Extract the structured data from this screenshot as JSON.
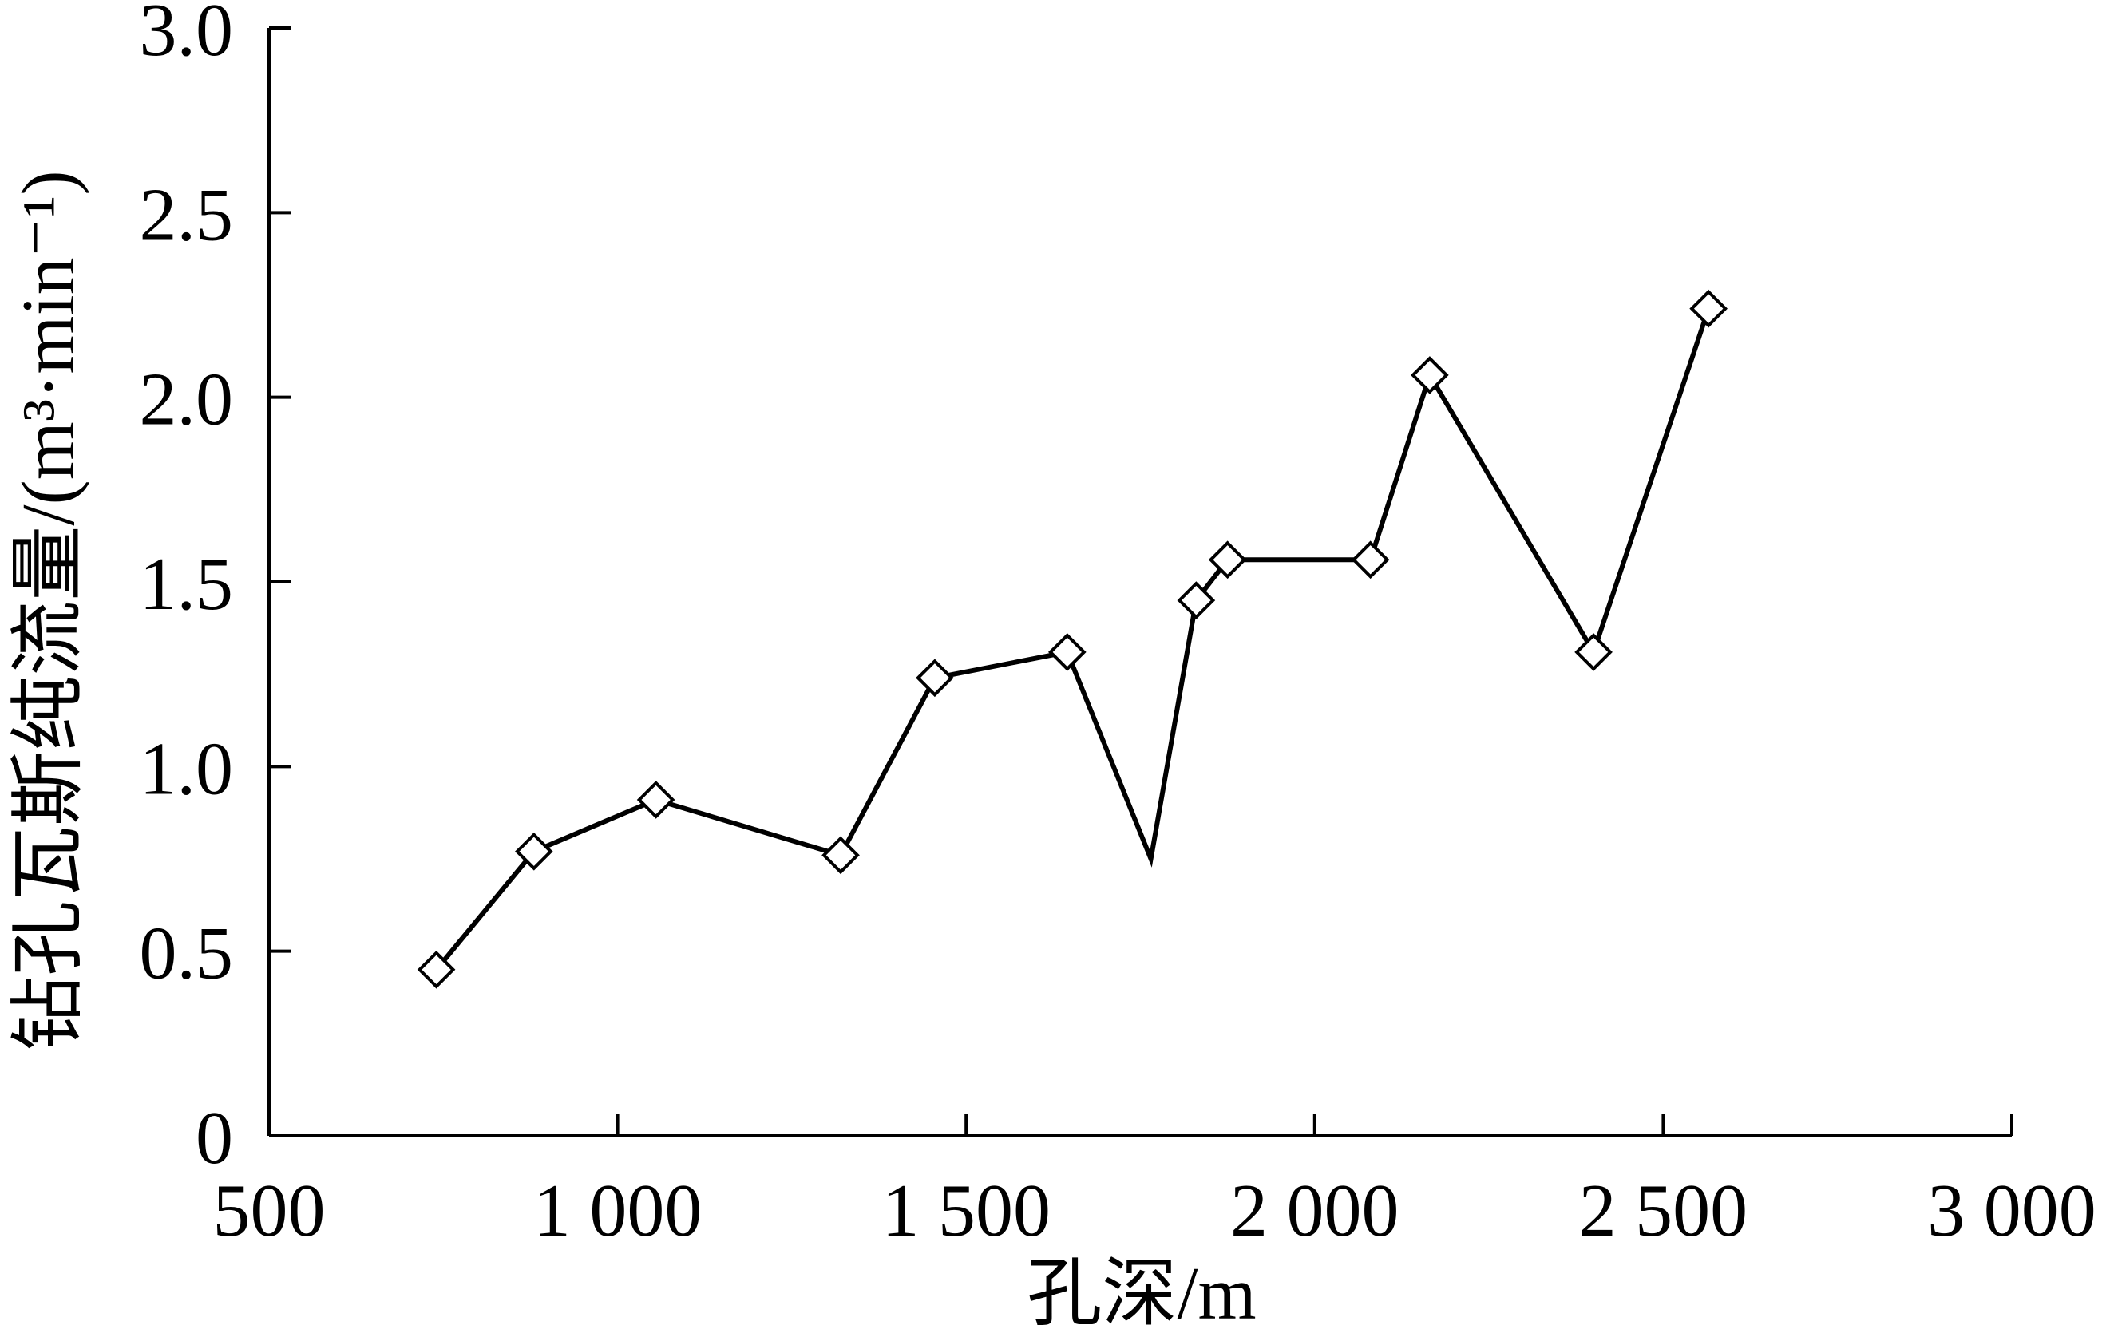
{
  "chart_data": {
    "type": "line",
    "title": "",
    "xlabel": "孔深/m",
    "ylabel": "钻孔瓦斯纯流量/(m³·min⁻¹)",
    "xlim": [
      500,
      3000
    ],
    "ylim": [
      0,
      3.0
    ],
    "x_ticks": [
      500,
      1000,
      1500,
      2000,
      2500,
      3000
    ],
    "x_tick_labels": [
      "500",
      "1 000",
      "1 500",
      "2 000",
      "2 500",
      "3 000"
    ],
    "y_ticks": [
      0,
      0.5,
      1.0,
      1.5,
      2.0,
      2.5,
      3.0
    ],
    "y_tick_labels": [
      "0",
      "0.5",
      "1.0",
      "1.5",
      "2.0",
      "2.5",
      "3.0"
    ],
    "grid": false,
    "series": [
      {
        "marker": "diamond",
        "color": "#000000",
        "points": [
          {
            "x": 740,
            "y": 0.45,
            "marker": true
          },
          {
            "x": 880,
            "y": 0.77,
            "marker": true
          },
          {
            "x": 1055,
            "y": 0.91,
            "marker": true
          },
          {
            "x": 1320,
            "y": 0.76,
            "marker": true
          },
          {
            "x": 1455,
            "y": 1.24,
            "marker": true
          },
          {
            "x": 1645,
            "y": 1.31,
            "marker": true
          },
          {
            "x": 1765,
            "y": 0.75,
            "marker": false
          },
          {
            "x": 1830,
            "y": 1.45,
            "marker": true
          },
          {
            "x": 1875,
            "y": 1.56,
            "marker": true
          },
          {
            "x": 2080,
            "y": 1.56,
            "marker": true
          },
          {
            "x": 2165,
            "y": 2.06,
            "marker": true
          },
          {
            "x": 2400,
            "y": 1.31,
            "marker": true
          },
          {
            "x": 2565,
            "y": 2.24,
            "marker": true
          }
        ]
      }
    ]
  }
}
